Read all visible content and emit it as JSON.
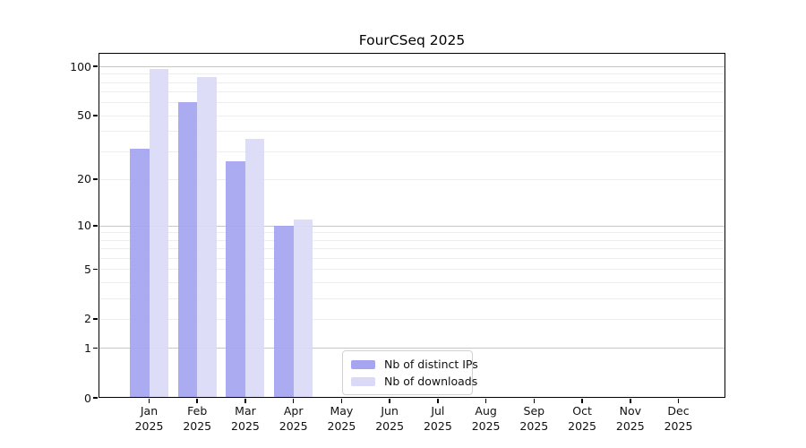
{
  "chart_data": {
    "type": "bar",
    "title": "FourCSeq 2025",
    "xlabel": "",
    "ylabel": "",
    "y_scale": "pseudo-log (log10 of 1+value)",
    "ylim": [
      0,
      121
    ],
    "grid": "horizontal, major lines at 1/10/100, minor at 2-9 and 20-90",
    "categories": [
      "Jan",
      "Feb",
      "Mar",
      "Apr",
      "May",
      "Jun",
      "Jul",
      "Aug",
      "Sep",
      "Oct",
      "Nov",
      "Dec"
    ],
    "year_label": "2025",
    "series": [
      {
        "name": "Nb of distinct IPs",
        "color": "#a5a5f0",
        "values": [
          31,
          60,
          26,
          10,
          0,
          0,
          0,
          0,
          0,
          0,
          0,
          0
        ]
      },
      {
        "name": "Nb of downloads",
        "color": "#dadaf8",
        "values": [
          96,
          86,
          36,
          11,
          0,
          0,
          0,
          0,
          0,
          0,
          0,
          0
        ]
      }
    ],
    "y_ticks": [
      {
        "value": 100,
        "label": "100"
      },
      {
        "value": 50,
        "label": "50"
      },
      {
        "value": 20,
        "label": "20"
      },
      {
        "value": 10,
        "label": "10"
      },
      {
        "value": 5,
        "label": "5"
      },
      {
        "value": 2,
        "label": "2"
      },
      {
        "value": 1,
        "label": "1"
      },
      {
        "value": 0,
        "label": "0"
      }
    ],
    "gridline_values": {
      "major": [
        1,
        10,
        100
      ],
      "minor": [
        2,
        3,
        4,
        5,
        6,
        7,
        8,
        9,
        20,
        30,
        40,
        50,
        60,
        70,
        80,
        90
      ]
    },
    "legend_position": "inside plot, bottom center-left"
  }
}
